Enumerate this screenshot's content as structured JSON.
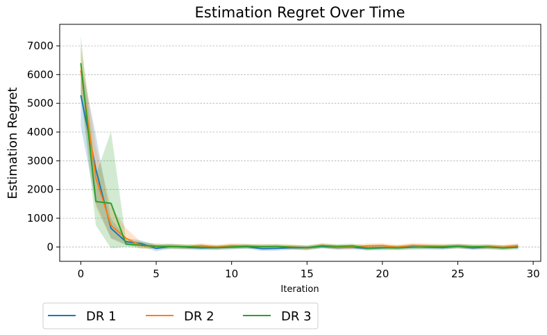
{
  "chart_data": {
    "type": "line",
    "title": "Estimation Regret Over Time",
    "xlabel": "Iteration",
    "ylabel": "Estimation Regret",
    "xlim": [
      -1.4,
      30.5
    ],
    "ylim": [
      -500,
      7750
    ],
    "xticks": [
      0,
      5,
      10,
      15,
      20,
      25,
      30
    ],
    "yticks": [
      0,
      1000,
      2000,
      3000,
      4000,
      5000,
      6000,
      7000
    ],
    "grid": "horizontal dashed",
    "legend_placement": "below-left",
    "x": [
      0,
      1,
      2,
      3,
      4,
      5,
      6,
      7,
      8,
      9,
      10,
      11,
      12,
      13,
      14,
      15,
      16,
      17,
      18,
      19,
      20,
      21,
      22,
      23,
      24,
      25,
      26,
      27,
      28,
      29
    ],
    "series": [
      {
        "name": "DR 1",
        "color": "#1f77b4",
        "values": [
          5280,
          2700,
          650,
          180,
          120,
          -50,
          20,
          -10,
          -30,
          -20,
          -10,
          10,
          -60,
          -50,
          -20,
          -30,
          20,
          -20,
          -10,
          -50,
          -30,
          -20,
          0,
          -10,
          -20,
          20,
          -30,
          0,
          -20,
          10
        ],
        "lower": [
          4200,
          1500,
          300,
          60,
          20,
          -150,
          -60,
          -80,
          -100,
          -90,
          -80,
          -60,
          -140,
          -130,
          -90,
          -100,
          -50,
          -90,
          -80,
          -120,
          -100,
          -90,
          -70,
          -80,
          -90,
          -50,
          -100,
          -70,
          -90,
          -60
        ],
        "upper": [
          6400,
          3900,
          1000,
          300,
          230,
          50,
          100,
          60,
          40,
          50,
          60,
          80,
          20,
          30,
          50,
          40,
          90,
          50,
          60,
          20,
          40,
          50,
          70,
          60,
          50,
          90,
          40,
          70,
          50,
          80
        ]
      },
      {
        "name": "DR 2",
        "color": "#ff7f0e",
        "values": [
          6150,
          2400,
          750,
          300,
          50,
          20,
          30,
          0,
          50,
          -10,
          50,
          30,
          20,
          20,
          0,
          -30,
          50,
          -10,
          0,
          40,
          50,
          -10,
          60,
          40,
          30,
          30,
          0,
          20,
          -10,
          50
        ],
        "lower": [
          5300,
          1400,
          300,
          100,
          -60,
          -60,
          -50,
          -80,
          -30,
          -90,
          -30,
          -50,
          -60,
          -60,
          -80,
          -110,
          -30,
          -90,
          -80,
          -40,
          -30,
          -90,
          -20,
          -40,
          -50,
          -50,
          -80,
          -60,
          -90,
          -30
        ],
        "upper": [
          7000,
          3500,
          1400,
          650,
          170,
          100,
          120,
          80,
          130,
          70,
          130,
          110,
          100,
          100,
          80,
          50,
          130,
          70,
          80,
          120,
          130,
          70,
          140,
          120,
          110,
          110,
          80,
          100,
          70,
          130
        ]
      },
      {
        "name": "DR 3",
        "color": "#2ca02c",
        "values": [
          6400,
          1580,
          1520,
          100,
          60,
          30,
          10,
          10,
          -10,
          -20,
          0,
          20,
          10,
          20,
          -10,
          -20,
          40,
          20,
          40,
          -40,
          -20,
          -30,
          -10,
          0,
          0,
          30,
          10,
          0,
          -30,
          -10
        ],
        "lower": [
          5400,
          750,
          -50,
          0,
          -50,
          -60,
          -80,
          -70,
          -90,
          -100,
          -80,
          -60,
          -70,
          -60,
          -90,
          -100,
          -40,
          -60,
          -40,
          -120,
          -100,
          -110,
          -90,
          -80,
          -80,
          -50,
          -70,
          -80,
          -110,
          -90
        ],
        "upper": [
          7350,
          2500,
          4020,
          230,
          180,
          120,
          100,
          90,
          70,
          60,
          80,
          100,
          90,
          100,
          70,
          60,
          120,
          100,
          120,
          40,
          60,
          50,
          70,
          80,
          80,
          110,
          90,
          80,
          50,
          70
        ]
      }
    ]
  }
}
